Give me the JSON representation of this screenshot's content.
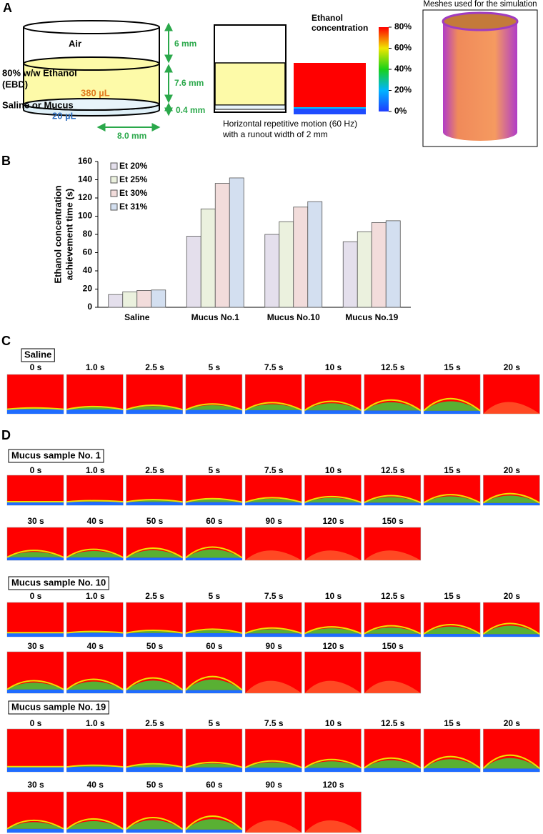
{
  "panel_a": {
    "letter": "A",
    "air": "Air",
    "ethanol": "80% w/w Ethanol",
    "ebd": "(EBD)",
    "ethanol_volume": "380 µL",
    "saline": "Saline or Mucus",
    "saline_volume": "20 µL",
    "dim_air": "6 mm",
    "dim_ethanol": "7.6 mm",
    "dim_saline": "0.4 mm",
    "dim_width": "8.0 mm",
    "motion": [
      "Horizontal repetitive motion (60 Hz)",
      "with a runout width of 2 mm"
    ],
    "colorbar_title": [
      "Ethanol",
      "concentration"
    ],
    "colorbar_lim": [
      0,
      80
    ],
    "colorbar_ticks": [
      {
        "value": 0,
        "label": "0%"
      },
      {
        "value": 20,
        "label": "20%"
      },
      {
        "value": 40,
        "label": "40%"
      },
      {
        "value": 60,
        "label": "60%"
      },
      {
        "value": 80,
        "label": "80%"
      }
    ],
    "mesh_title": "Meshes used for the simulation"
  },
  "chart_data": {
    "type": "bar",
    "panel": "B",
    "ylabel": [
      "Ethanol concentration",
      "achievement time (s)"
    ],
    "categories": [
      "Saline",
      "Mucus No.1",
      "Mucus No.10",
      "Mucus No.19"
    ],
    "series": [
      {
        "name": "Et 20%",
        "color": "#e4dfec",
        "values": [
          14,
          78,
          80,
          72
        ]
      },
      {
        "name": "Et 25%",
        "color": "#ebf1de",
        "values": [
          17,
          108,
          94,
          83
        ]
      },
      {
        "name": "Et 30%",
        "color": "#f2dcdb",
        "values": [
          18.5,
          136,
          110,
          93
        ]
      },
      {
        "name": "Et 31%",
        "color": "#d3dff0",
        "values": [
          19,
          142,
          116,
          95
        ]
      }
    ],
    "ylim": [
      0,
      160
    ],
    "yticks": [
      0,
      20,
      40,
      60,
      80,
      100,
      120,
      140,
      160
    ],
    "legend": "upper-left"
  },
  "panel_c": {
    "letter": "C",
    "sample": "Saline",
    "times": [
      "0 s",
      "1.0 s",
      "2.5 s",
      "5 s",
      "7.5 s",
      "10 s",
      "12.5 s",
      "15 s",
      "20 s"
    ]
  },
  "panel_d": {
    "letter": "D",
    "samples": [
      {
        "name": "Mucus sample No. 1",
        "rows": [
          [
            "0 s",
            "1.0 s",
            "2.5 s",
            "5 s",
            "7.5 s",
            "10 s",
            "12.5 s",
            "15 s",
            "20 s"
          ],
          [
            "30 s",
            "40 s",
            "50 s",
            "60 s",
            "90 s",
            "120 s",
            "150 s"
          ]
        ]
      },
      {
        "name": "Mucus sample No. 10",
        "rows": [
          [
            "0 s",
            "1.0 s",
            "2.5 s",
            "5 s",
            "7.5 s",
            "10 s",
            "12.5 s",
            "15 s",
            "20 s"
          ],
          [
            "30 s",
            "40 s",
            "50 s",
            "60 s",
            "90 s",
            "120 s",
            "150 s"
          ]
        ]
      },
      {
        "name": "Mucus sample No. 19",
        "rows": [
          [
            "0 s",
            "1.0 s",
            "2.5 s",
            "5 s",
            "7.5 s",
            "10 s",
            "12.5 s",
            "15 s",
            "20 s"
          ],
          [
            "30 s",
            "40 s",
            "50 s",
            "60 s",
            "90 s",
            "120 s"
          ]
        ]
      }
    ]
  }
}
